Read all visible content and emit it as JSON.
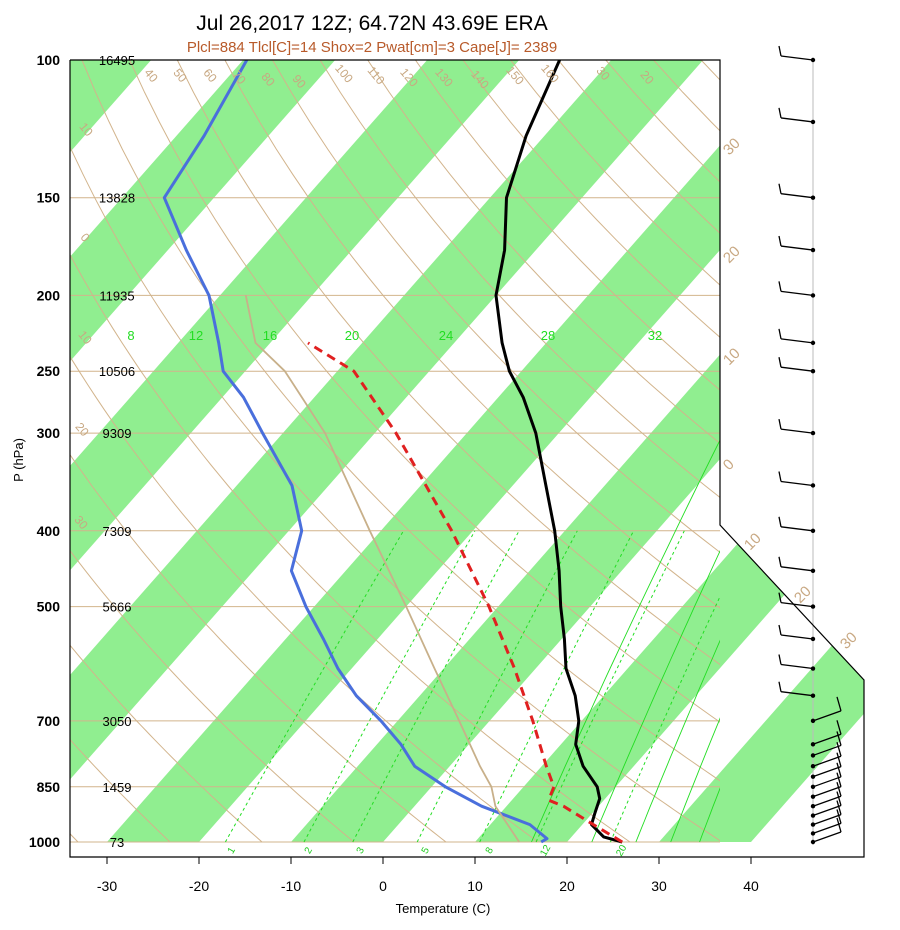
{
  "header": {
    "title": "Jul 26,2017 12Z; 64.72N 43.69E ERA",
    "subtitle": "Plcl=884 Tlcl[C]=14 Shox=2 Pwat[cm]=3 Cape[J]= 2389",
    "subtitle_color": "#b85a2a"
  },
  "chart_data": {
    "type": "line",
    "title": "Jul 26,2017 12Z; 64.72N 43.69E ERA",
    "xlabel": "Temperature (C)",
    "ylabel": "P (hPa)",
    "xlim": [
      -33,
      52
    ],
    "ylim_hpa": [
      1000,
      100
    ],
    "y_scale": "log-pressure",
    "x_ticks": [
      "-30",
      "-20",
      "-10",
      "0",
      "10",
      "20",
      "30",
      "40"
    ],
    "pressure_levels": [
      {
        "p": 100,
        "label": "100",
        "height": "16495"
      },
      {
        "p": 150,
        "label": "150",
        "height": "13828"
      },
      {
        "p": 200,
        "label": "200",
        "height": "11935"
      },
      {
        "p": 250,
        "label": "250",
        "height": "10506"
      },
      {
        "p": 300,
        "label": "300",
        "height": "9309"
      },
      {
        "p": 400,
        "label": "400",
        "height": "7309"
      },
      {
        "p": 500,
        "label": "500",
        "height": "5666"
      },
      {
        "p": 700,
        "label": "700",
        "height": "3050"
      },
      {
        "p": 850,
        "label": "850",
        "height": "1459"
      },
      {
        "p": 1000,
        "label": "1000",
        "height": "73"
      }
    ],
    "series": [
      {
        "name": "temperature",
        "color": "#000000",
        "style": "solid",
        "p": [
          1000,
          985,
          950,
          920,
          880,
          850,
          800,
          750,
          700,
          650,
          600,
          550,
          500,
          450,
          400,
          350,
          300,
          270,
          250,
          230,
          200,
          175,
          150,
          125,
          100
        ],
        "t": [
          26.0,
          23.5,
          21.0,
          20.3,
          19.4,
          18.0,
          14.5,
          11.6,
          9.7,
          6.9,
          3.3,
          0.3,
          -3.2,
          -6.8,
          -11.1,
          -16.4,
          -22.5,
          -27.3,
          -31.3,
          -34.8,
          -40.0,
          -43.4,
          -48.2,
          -52.0,
          -55.6
        ]
      },
      {
        "name": "dewpoint",
        "color": "#4a6fdc",
        "style": "solid",
        "p": [
          1000,
          990,
          950,
          900,
          850,
          800,
          750,
          700,
          650,
          600,
          550,
          500,
          450,
          400,
          350,
          300,
          270,
          250,
          230,
          200,
          175,
          150,
          125,
          100
        ],
        "t": [
          17.2,
          17.5,
          14.3,
          7.3,
          1.5,
          -3.8,
          -7.4,
          -11.8,
          -16.9,
          -21.5,
          -25.9,
          -30.9,
          -35.9,
          -38.6,
          -44.0,
          -52.2,
          -57.7,
          -62.4,
          -65.6,
          -71.2,
          -78.0,
          -85.4,
          -87.0,
          -89.6
        ]
      },
      {
        "name": "parcel",
        "color": "#e02020",
        "style": "dashed",
        "p": [
          1000,
          950,
          900,
          884,
          850,
          800,
          700,
          600,
          500,
          400,
          300,
          250,
          230
        ],
        "t": [
          26.0,
          21.2,
          16.2,
          14.0,
          13.3,
          10.5,
          4.7,
          -2.3,
          -11.0,
          -22.3,
          -37.7,
          -48.2,
          -55.9
        ]
      },
      {
        "name": "virtual-temperature",
        "color": "#c8b08a",
        "style": "solid",
        "p": [
          1000,
          900,
          850,
          800,
          700,
          600,
          500,
          400,
          300,
          250,
          230,
          200
        ],
        "t": [
          14.8,
          8.8,
          6.5,
          3.3,
          -3.3,
          -11.0,
          -20.0,
          -31.2,
          -45.4,
          -55.7,
          -61.6,
          -67.2
        ]
      }
    ],
    "isotherms_deg": [
      -30,
      -20,
      -10,
      0,
      10,
      20,
      30,
      40
    ],
    "skewed_isotherm_labels": [
      "30",
      "20",
      "10",
      "0",
      "10",
      "20",
      "30"
    ],
    "dry_adiabat_labels": [
      "40",
      "50",
      "60",
      "70",
      "80",
      "90",
      "100",
      "110",
      "120",
      "130",
      "140",
      "150",
      "160",
      "30",
      "20",
      "10",
      "0",
      "10",
      "20",
      "30"
    ],
    "mixing_ratio_labels_top": [
      "8",
      "12",
      "16",
      "20",
      "24",
      "28",
      "32"
    ],
    "mixing_ratio_labels_bottom": [
      "1",
      "2",
      "3",
      "5",
      "8",
      "12",
      "20"
    ],
    "wind_barbs_present": true,
    "grid": true,
    "colors": {
      "isotherm_band": "#90ee90",
      "adiabat": "#d2b48c",
      "mixing_ratio": "#22dd22",
      "axes": "#000000",
      "wind_staff": "#000000"
    }
  }
}
